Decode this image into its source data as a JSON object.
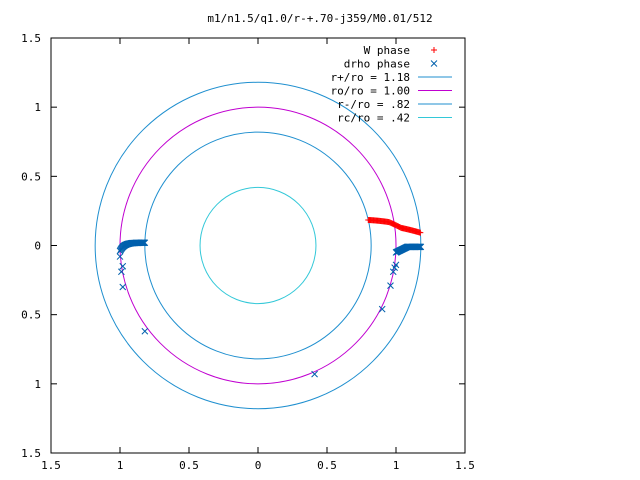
{
  "chart_data": {
    "type": "scatter",
    "title": "m1/n1.5/q1.0/r-+.70-j359/M0.01/512",
    "xlim": [
      -1.5,
      1.5
    ],
    "ylim": [
      -1.5,
      1.5
    ],
    "x_tick_labels": [
      "1.5",
      "1",
      "0.5",
      "0",
      "0.5",
      "1",
      "1.5"
    ],
    "x_tick_values": [
      -1.5,
      -1,
      -0.5,
      0,
      0.5,
      1,
      1.5
    ],
    "y_tick_labels": [
      "1.5",
      "1",
      "0.5",
      "0",
      "0.5",
      "1",
      "1.5"
    ],
    "y_tick_values": [
      1.5,
      1,
      0.5,
      0,
      -0.5,
      -1,
      -1.5
    ],
    "grid": false,
    "legend_position": "top-right",
    "series": [
      {
        "name": "W phase",
        "kind": "points",
        "marker": "plus",
        "color": "#ff0000",
        "arc": {
          "r_start": 0.82,
          "r_end": 1.18,
          "theta_start_deg": 13,
          "theta_peak_deg": 8.5,
          "theta_end_deg": 4.5,
          "count": 60
        }
      },
      {
        "name": "drho phase",
        "kind": "points",
        "marker": "cross",
        "color": "#0060ad",
        "points": [
          [
            -1.0,
            -0.08
          ],
          [
            -0.98,
            -0.15
          ],
          [
            -0.99,
            -0.19
          ],
          [
            -0.98,
            -0.3
          ],
          [
            -0.82,
            -0.62
          ],
          [
            0.41,
            -0.93
          ],
          [
            0.9,
            -0.46
          ],
          [
            0.96,
            -0.29
          ],
          [
            0.98,
            -0.19
          ],
          [
            0.99,
            -0.16
          ],
          [
            1.0,
            -0.14
          ]
        ],
        "arc_left": {
          "r_start": 1.0,
          "r_end": 0.82,
          "count": 45
        },
        "arc_right": {
          "r_start": 1.0,
          "r_end": 1.18,
          "count": 45
        }
      },
      {
        "name": "r+/ro = 1.18",
        "kind": "circle",
        "r": 1.18,
        "color": "#1f8fcf"
      },
      {
        "name": "ro/ro = 1.00",
        "kind": "circle",
        "r": 1.0,
        "color": "#c000d0"
      },
      {
        "name": "r-/ro = .82",
        "kind": "circle",
        "r": 0.82,
        "color": "#1f8fcf"
      },
      {
        "name": "rc/ro = .42",
        "kind": "circle",
        "r": 0.42,
        "color": "#33c8d8"
      }
    ]
  }
}
